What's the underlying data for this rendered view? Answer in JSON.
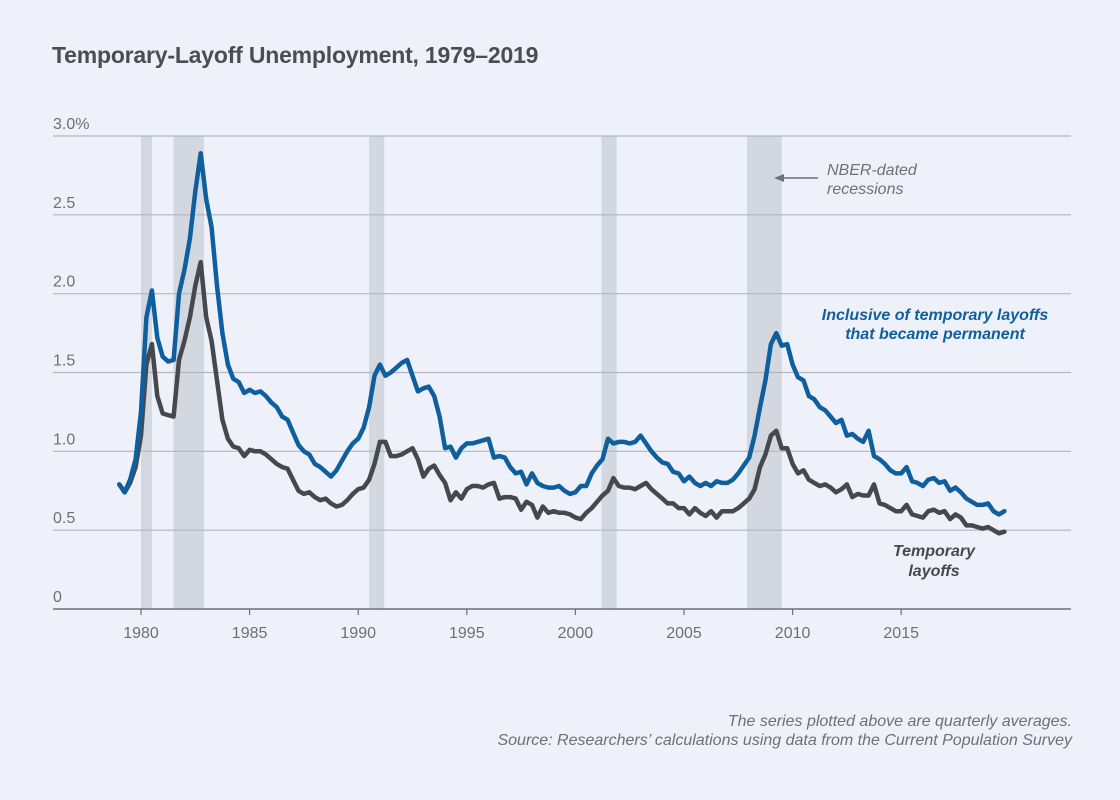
{
  "chart_data": {
    "type": "line",
    "title": "Temporary-Layoff Unemployment, 1979–2019",
    "xlabel": "",
    "ylabel": "",
    "x_start": 1979.0,
    "x_step": 0.25,
    "xlim": [
      1976.3,
      2020.3
    ],
    "ylim": [
      0,
      3.0
    ],
    "y_ticks": [
      0,
      0.5,
      1.0,
      1.5,
      2.0,
      2.5,
      3.0
    ],
    "y_tick_labels": [
      "0",
      "0.5",
      "1.0",
      "1.5",
      "2.0",
      "2.5",
      "3.0%"
    ],
    "x_ticks": [
      1980,
      1985,
      1990,
      1995,
      2000,
      2005,
      2010,
      2015
    ],
    "x_tick_labels": [
      "1980",
      "1985",
      "1990",
      "1995",
      "2000",
      "2005",
      "2010",
      "2015"
    ],
    "grid": "horizontal",
    "recessions": [
      [
        1980.0,
        1980.5
      ],
      [
        1981.5,
        1982.9
      ],
      [
        1990.5,
        1991.2
      ],
      [
        2001.2,
        2001.9
      ],
      [
        2007.9,
        2009.5
      ]
    ],
    "series": [
      {
        "name": "Inclusive of temporary layoffs that became permanent",
        "color": "#0f5f9e",
        "values": [
          0.79,
          0.74,
          0.82,
          0.95,
          1.25,
          1.85,
          2.02,
          1.72,
          1.6,
          1.57,
          1.58,
          2.0,
          2.15,
          2.35,
          2.65,
          2.89,
          2.6,
          2.42,
          2.05,
          1.75,
          1.55,
          1.46,
          1.44,
          1.37,
          1.39,
          1.37,
          1.38,
          1.35,
          1.31,
          1.28,
          1.22,
          1.2,
          1.12,
          1.04,
          1.0,
          0.98,
          0.92,
          0.9,
          0.87,
          0.84,
          0.88,
          0.94,
          1.0,
          1.05,
          1.08,
          1.15,
          1.28,
          1.48,
          1.55,
          1.48,
          1.5,
          1.53,
          1.56,
          1.58,
          1.48,
          1.38,
          1.4,
          1.41,
          1.35,
          1.22,
          1.02,
          1.03,
          0.96,
          1.02,
          1.05,
          1.05,
          1.06,
          1.07,
          1.08,
          0.96,
          0.97,
          0.96,
          0.9,
          0.86,
          0.87,
          0.79,
          0.86,
          0.8,
          0.78,
          0.77,
          0.77,
          0.78,
          0.75,
          0.73,
          0.74,
          0.78,
          0.78,
          0.86,
          0.91,
          0.95,
          1.08,
          1.05,
          1.06,
          1.06,
          1.05,
          1.06,
          1.1,
          1.05,
          1.0,
          0.96,
          0.93,
          0.92,
          0.87,
          0.86,
          0.81,
          0.84,
          0.8,
          0.78,
          0.8,
          0.78,
          0.81,
          0.8,
          0.8,
          0.82,
          0.86,
          0.91,
          0.96,
          1.1,
          1.28,
          1.45,
          1.68,
          1.75,
          1.67,
          1.68,
          1.55,
          1.47,
          1.45,
          1.35,
          1.33,
          1.28,
          1.26,
          1.22,
          1.18,
          1.2,
          1.1,
          1.11,
          1.08,
          1.06,
          1.13,
          0.97,
          0.95,
          0.92,
          0.88,
          0.86,
          0.86,
          0.9,
          0.81,
          0.8,
          0.78,
          0.82,
          0.83,
          0.8,
          0.81,
          0.75,
          0.77,
          0.74,
          0.7,
          0.68,
          0.66,
          0.66,
          0.67,
          0.62,
          0.6,
          0.62
        ]
      },
      {
        "name": "Temporary layoffs",
        "color": "#47484d",
        "values": [
          0.79,
          0.74,
          0.8,
          0.9,
          1.1,
          1.55,
          1.68,
          1.35,
          1.24,
          1.23,
          1.22,
          1.58,
          1.7,
          1.85,
          2.05,
          2.2,
          1.85,
          1.7,
          1.45,
          1.2,
          1.08,
          1.03,
          1.02,
          0.97,
          1.01,
          1.0,
          1.0,
          0.98,
          0.95,
          0.92,
          0.9,
          0.89,
          0.82,
          0.75,
          0.73,
          0.74,
          0.71,
          0.69,
          0.7,
          0.67,
          0.65,
          0.66,
          0.69,
          0.73,
          0.76,
          0.77,
          0.82,
          0.92,
          1.06,
          1.06,
          0.97,
          0.97,
          0.98,
          1.0,
          1.02,
          0.95,
          0.84,
          0.89,
          0.91,
          0.85,
          0.8,
          0.69,
          0.74,
          0.7,
          0.76,
          0.78,
          0.78,
          0.77,
          0.79,
          0.8,
          0.7,
          0.71,
          0.71,
          0.7,
          0.63,
          0.68,
          0.66,
          0.58,
          0.65,
          0.61,
          0.62,
          0.61,
          0.61,
          0.6,
          0.58,
          0.57,
          0.61,
          0.64,
          0.68,
          0.72,
          0.75,
          0.83,
          0.78,
          0.77,
          0.77,
          0.76,
          0.78,
          0.8,
          0.76,
          0.73,
          0.7,
          0.67,
          0.67,
          0.64,
          0.64,
          0.6,
          0.64,
          0.61,
          0.59,
          0.62,
          0.58,
          0.62,
          0.62,
          0.62,
          0.64,
          0.67,
          0.7,
          0.76,
          0.9,
          0.98,
          1.1,
          1.13,
          1.02,
          1.02,
          0.92,
          0.86,
          0.88,
          0.82,
          0.8,
          0.78,
          0.79,
          0.77,
          0.74,
          0.76,
          0.79,
          0.71,
          0.73,
          0.72,
          0.72,
          0.79,
          0.67,
          0.66,
          0.64,
          0.62,
          0.62,
          0.66,
          0.6,
          0.59,
          0.58,
          0.62,
          0.63,
          0.61,
          0.62,
          0.57,
          0.6,
          0.58,
          0.53,
          0.53,
          0.52,
          0.51,
          0.52,
          0.5,
          0.48,
          0.49
        ]
      }
    ],
    "annotations": {
      "recession_label": [
        "NBER-dated",
        "recessions"
      ],
      "inclusive_label": [
        "Inclusive of temporary layoffs",
        "that became permanent"
      ],
      "temporary_label": [
        "Temporary",
        "layoffs"
      ]
    }
  },
  "footer": {
    "note": "The series plotted above are quarterly averages.",
    "source": "Source: Researchers’ calculations using data from the Current Population Survey"
  }
}
